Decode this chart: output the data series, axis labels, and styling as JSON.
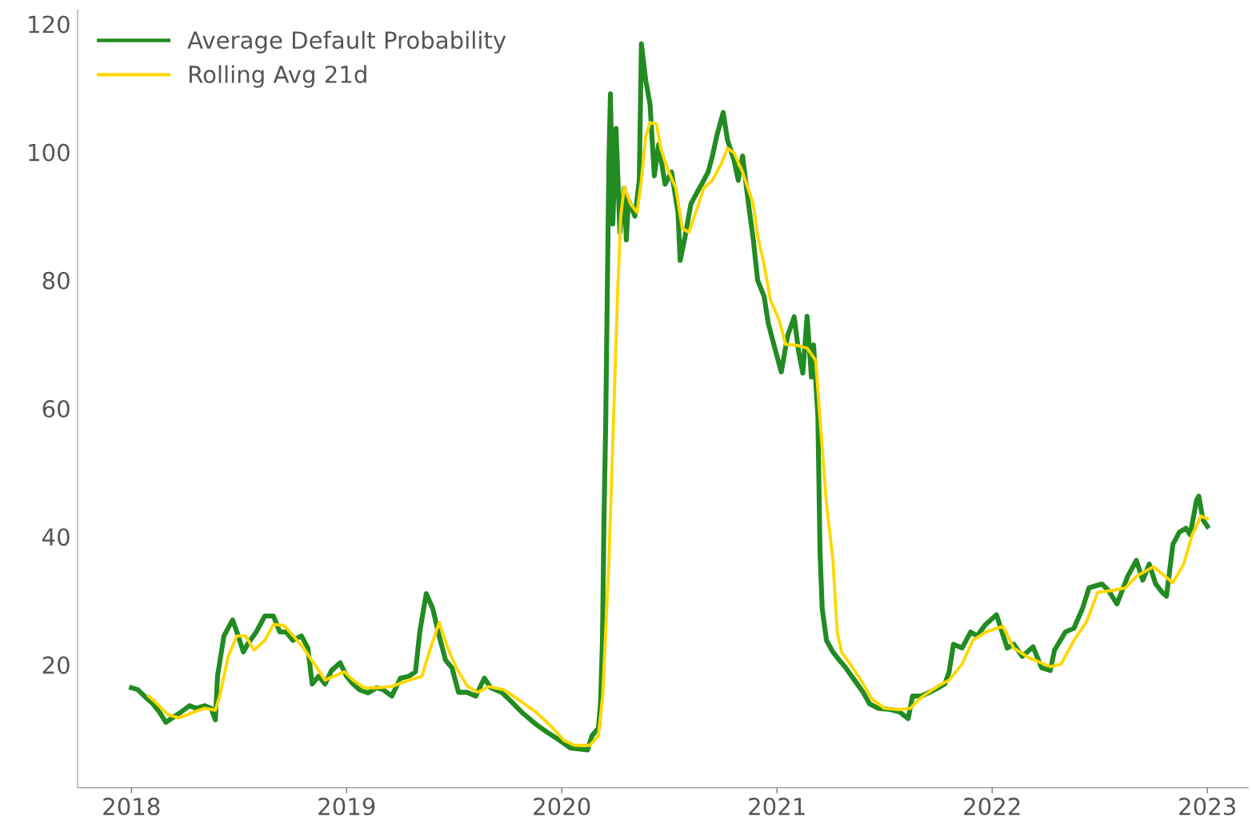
{
  "chart_data": {
    "type": "line",
    "xlim": [
      2017.75,
      2023.19
    ],
    "ylim": [
      0.8,
      122.2
    ],
    "xticks": [
      2018,
      2019,
      2020,
      2021,
      2022,
      2023
    ],
    "yticks": [
      20,
      40,
      60,
      80,
      100,
      120
    ],
    "legend": "top left",
    "grid": false,
    "marker": "none",
    "line_style": "solid",
    "series": [
      {
        "name": "Average Default Probability",
        "color": "#228b22",
        "x": [
          2018.0,
          2018.03,
          2018.06,
          2018.1,
          2018.13,
          2018.16,
          2018.19,
          2018.23,
          2018.27,
          2018.3,
          2018.34,
          2018.37,
          2018.39,
          2018.4,
          2018.43,
          2018.47,
          2018.49,
          2018.52,
          2018.54,
          2018.58,
          2018.62,
          2018.66,
          2018.69,
          2018.72,
          2018.75,
          2018.79,
          2018.82,
          2018.84,
          2018.87,
          2018.9,
          2018.93,
          2018.97,
          2019.0,
          2019.03,
          2019.06,
          2019.1,
          2019.14,
          2019.17,
          2019.21,
          2019.25,
          2019.29,
          2019.32,
          2019.34,
          2019.37,
          2019.4,
          2019.43,
          2019.46,
          2019.49,
          2019.52,
          2019.56,
          2019.6,
          2019.64,
          2019.67,
          2019.72,
          2019.77,
          2019.82,
          2019.88,
          2019.93,
          2019.99,
          2020.04,
          2020.12,
          2020.14,
          2020.17,
          2020.18,
          2020.189,
          2020.196,
          2020.204,
          2020.219,
          2020.226,
          2020.237,
          2020.252,
          2020.27,
          2020.29,
          2020.3,
          2020.31,
          2020.34,
          2020.36,
          2020.37,
          2020.39,
          2020.41,
          2020.43,
          2020.45,
          2020.48,
          2020.51,
          2020.54,
          2020.55,
          2020.57,
          2020.6,
          2020.63,
          2020.65,
          2020.68,
          2020.7,
          2020.72,
          2020.75,
          2020.77,
          2020.8,
          2020.82,
          2020.84,
          2020.87,
          2020.89,
          2020.91,
          2020.94,
          2020.96,
          2020.99,
          2021.02,
          2021.05,
          2021.08,
          2021.1,
          2021.12,
          2021.14,
          2021.16,
          2021.17,
          2021.19,
          2021.2,
          2021.21,
          2021.23,
          2021.26,
          2021.29,
          2021.32,
          2021.36,
          2021.4,
          2021.43,
          2021.47,
          2021.53,
          2021.57,
          2021.61,
          2021.63,
          2021.67,
          2021.71,
          2021.75,
          2021.78,
          2021.8,
          2021.82,
          2021.86,
          2021.9,
          2021.93,
          2021.97,
          2022.02,
          2022.04,
          2022.07,
          2022.1,
          2022.14,
          2022.19,
          2022.23,
          2022.27,
          2022.29,
          2022.34,
          2022.38,
          2022.42,
          2022.45,
          2022.51,
          2022.54,
          2022.58,
          2022.63,
          2022.67,
          2022.7,
          2022.73,
          2022.76,
          2022.79,
          2022.81,
          2022.84,
          2022.87,
          2022.9,
          2022.92,
          2022.95,
          2022.96,
          2022.98,
          2023.0
        ],
        "values": [
          16.4,
          16.1,
          15.1,
          13.9,
          12.6,
          11.0,
          11.7,
          12.6,
          13.6,
          13.2,
          13.6,
          13.2,
          11.4,
          18.2,
          24.5,
          27.0,
          25.1,
          22.0,
          23.2,
          25.1,
          27.6,
          27.6,
          25.1,
          25.1,
          23.8,
          24.5,
          22.6,
          17.0,
          18.2,
          17.0,
          19.1,
          20.3,
          18.2,
          17.0,
          16.1,
          15.6,
          16.4,
          16.1,
          15.1,
          17.9,
          18.2,
          18.9,
          25.1,
          31.1,
          28.8,
          24.5,
          20.7,
          19.5,
          15.7,
          15.7,
          15.1,
          17.9,
          16.4,
          15.7,
          14.1,
          12.4,
          10.7,
          9.5,
          8.2,
          7.0,
          6.7,
          8.9,
          10.1,
          13.9,
          23.8,
          42.6,
          57.6,
          98.8,
          109.1,
          88.8,
          103.7,
          87.5,
          94.4,
          86.3,
          92.5,
          90.0,
          95.6,
          116.9,
          111.2,
          107.5,
          96.3,
          101.2,
          95.0,
          96.9,
          90.6,
          83.1,
          86.3,
          91.9,
          93.8,
          95.0,
          96.9,
          99.4,
          102.5,
          106.2,
          101.9,
          98.8,
          95.6,
          99.4,
          91.3,
          86.3,
          80.0,
          77.5,
          73.2,
          69.4,
          65.7,
          71.4,
          74.3,
          69.0,
          65.5,
          74.4,
          64.9,
          69.9,
          58.8,
          37.6,
          28.8,
          23.8,
          22.0,
          20.7,
          19.5,
          17.6,
          15.7,
          13.9,
          13.2,
          13.0,
          12.6,
          11.6,
          15.1,
          15.1,
          15.7,
          16.4,
          17.0,
          18.9,
          23.2,
          22.6,
          25.1,
          24.5,
          26.3,
          27.8,
          25.7,
          22.6,
          23.2,
          21.3,
          22.8,
          19.5,
          19.1,
          22.3,
          25.1,
          25.7,
          28.8,
          32.0,
          32.6,
          31.6,
          29.5,
          33.8,
          36.3,
          33.2,
          35.7,
          32.6,
          31.3,
          30.7,
          38.8,
          40.7,
          41.3,
          40.3,
          45.7,
          46.3,
          42.6,
          41.6
        ]
      },
      {
        "name": "Rolling Avg 21d",
        "color": "#ffd700",
        "x": [
          2018.08,
          2018.12,
          2018.17,
          2018.22,
          2018.29,
          2018.34,
          2018.39,
          2018.41,
          2018.45,
          2018.49,
          2018.53,
          2018.57,
          2018.62,
          2018.66,
          2018.71,
          2018.76,
          2018.8,
          2018.85,
          2018.9,
          2018.94,
          2018.99,
          2019.03,
          2019.08,
          2019.14,
          2019.21,
          2019.29,
          2019.35,
          2019.39,
          2019.43,
          2019.47,
          2019.51,
          2019.56,
          2019.61,
          2019.66,
          2019.73,
          2019.8,
          2019.88,
          2019.95,
          2020.01,
          2020.06,
          2020.13,
          2020.17,
          2020.19,
          2020.219,
          2020.241,
          2020.259,
          2020.274,
          2020.29,
          2020.32,
          2020.35,
          2020.37,
          2020.39,
          2020.41,
          2020.44,
          2020.46,
          2020.49,
          2020.53,
          2020.56,
          2020.59,
          2020.63,
          2020.66,
          2020.7,
          2020.74,
          2020.77,
          2020.8,
          2020.84,
          2020.89,
          2020.91,
          2020.94,
          2020.97,
          2021.01,
          2021.04,
          2021.1,
          2021.14,
          2021.18,
          2021.21,
          2021.23,
          2021.26,
          2021.28,
          2021.3,
          2021.34,
          2021.39,
          2021.44,
          2021.5,
          2021.57,
          2021.62,
          2021.67,
          2021.75,
          2021.8,
          2021.86,
          2021.91,
          2021.97,
          2022.05,
          2022.1,
          2022.17,
          2022.27,
          2022.32,
          2022.38,
          2022.44,
          2022.49,
          2022.56,
          2022.62,
          2022.67,
          2022.75,
          2022.84,
          2022.89,
          2022.93,
          2022.97,
          2023.0
        ],
        "values": [
          15.1,
          13.9,
          12.2,
          11.7,
          12.6,
          13.2,
          12.9,
          15.1,
          21.3,
          24.5,
          24.5,
          22.3,
          23.8,
          26.3,
          26.1,
          24.2,
          22.6,
          20.1,
          17.6,
          18.2,
          18.9,
          17.6,
          16.4,
          16.4,
          16.6,
          17.6,
          18.2,
          22.6,
          26.6,
          22.6,
          19.5,
          16.7,
          15.7,
          16.6,
          16.1,
          14.5,
          12.6,
          10.4,
          8.2,
          7.4,
          7.4,
          8.9,
          15.1,
          36.3,
          58.8,
          77.5,
          90.0,
          94.6,
          91.9,
          90.6,
          95.6,
          102.5,
          104.6,
          104.4,
          100.6,
          97.5,
          94.4,
          88.1,
          87.5,
          91.3,
          94.4,
          95.6,
          98.1,
          100.6,
          99.9,
          96.9,
          91.9,
          86.9,
          82.5,
          76.9,
          73.8,
          70.0,
          69.8,
          69.4,
          67.5,
          53.8,
          45.1,
          36.3,
          25.1,
          22.0,
          20.1,
          17.6,
          14.7,
          13.2,
          13.0,
          13.2,
          14.9,
          16.7,
          17.6,
          20.1,
          23.8,
          25.1,
          26.0,
          22.6,
          21.1,
          19.7,
          20.1,
          23.8,
          26.8,
          31.3,
          31.6,
          32.0,
          33.8,
          35.3,
          32.8,
          35.7,
          40.3,
          43.2,
          42.8
        ]
      }
    ]
  }
}
